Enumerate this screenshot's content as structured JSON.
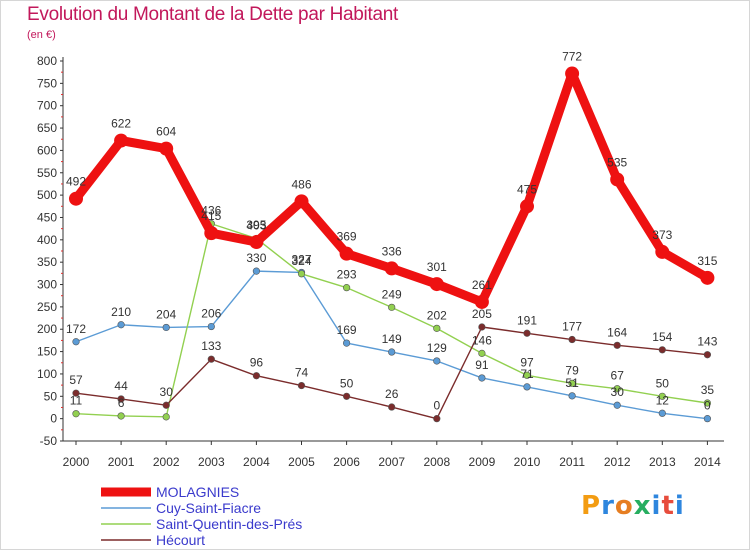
{
  "header": {
    "title": "Evolution du Montant de la Dette par Habitant",
    "unit": "(en €)"
  },
  "brand": {
    "text": "Proxiti",
    "letters": [
      "P",
      "r",
      "o",
      "x",
      "i",
      "t",
      "i"
    ],
    "colors": [
      "#f39c12",
      "#2e86de",
      "#e67e22",
      "#27ae60",
      "#2e86de",
      "#e74c3c",
      "#2e86de"
    ]
  },
  "chart_data": {
    "type": "line",
    "title": "Evolution du Montant de la Dette par Habitant",
    "ylabel": "(en €)",
    "xlabel": "",
    "x": [
      2000,
      2001,
      2002,
      2003,
      2004,
      2005,
      2006,
      2007,
      2008,
      2009,
      2010,
      2011,
      2012,
      2013,
      2014
    ],
    "ylim": [
      -50,
      800
    ],
    "yticks": [
      -50,
      0,
      50,
      100,
      150,
      200,
      250,
      300,
      350,
      400,
      450,
      500,
      550,
      600,
      650,
      700,
      750,
      800
    ],
    "grid": false,
    "legend_position": "bottom-left",
    "series": [
      {
        "name": "MOLAGNIES",
        "color": "#ee1111",
        "emphasis": true,
        "values": [
          492,
          622,
          604,
          415,
          395,
          486,
          369,
          336,
          301,
          261,
          475,
          772,
          535,
          373,
          315
        ],
        "labels": [
          "492",
          "622",
          "604",
          "415",
          "395",
          "486",
          "369",
          "336",
          "301",
          "261",
          "475",
          "772",
          "535",
          "373",
          "315"
        ]
      },
      {
        "name": "Cuy-Saint-Fiacre",
        "color": "#5b9bd5",
        "emphasis": false,
        "values": [
          172,
          210,
          204,
          206,
          330,
          327,
          169,
          149,
          129,
          91,
          71,
          51,
          30,
          12,
          0
        ],
        "labels": [
          "172",
          "210",
          "204",
          "206",
          "330",
          "327",
          "169",
          "149",
          "129",
          "91",
          "71",
          "51",
          "30",
          "12",
          "0"
        ]
      },
      {
        "name": "Saint-Quentin-des-Prés",
        "color": "#92d050",
        "emphasis": false,
        "values": [
          11,
          6,
          4,
          436,
          403,
          324,
          293,
          249,
          202,
          146,
          97,
          79,
          67,
          50,
          35
        ],
        "labels": [
          "11",
          "6",
          "",
          "436",
          "403",
          "324",
          "293",
          "249",
          "202",
          "146",
          "97",
          "79",
          "67",
          "50",
          "35"
        ]
      },
      {
        "name": "Hécourt",
        "color": "#7b2c2c",
        "emphasis": false,
        "values": [
          57,
          44,
          30,
          133,
          96,
          74,
          50,
          26,
          0,
          205,
          191,
          177,
          164,
          154,
          143
        ],
        "labels": [
          "57",
          "44",
          "30",
          "133",
          "96",
          "74",
          "50",
          "26",
          "0",
          "205",
          "191",
          "177",
          "164",
          "154",
          "143"
        ]
      }
    ]
  }
}
